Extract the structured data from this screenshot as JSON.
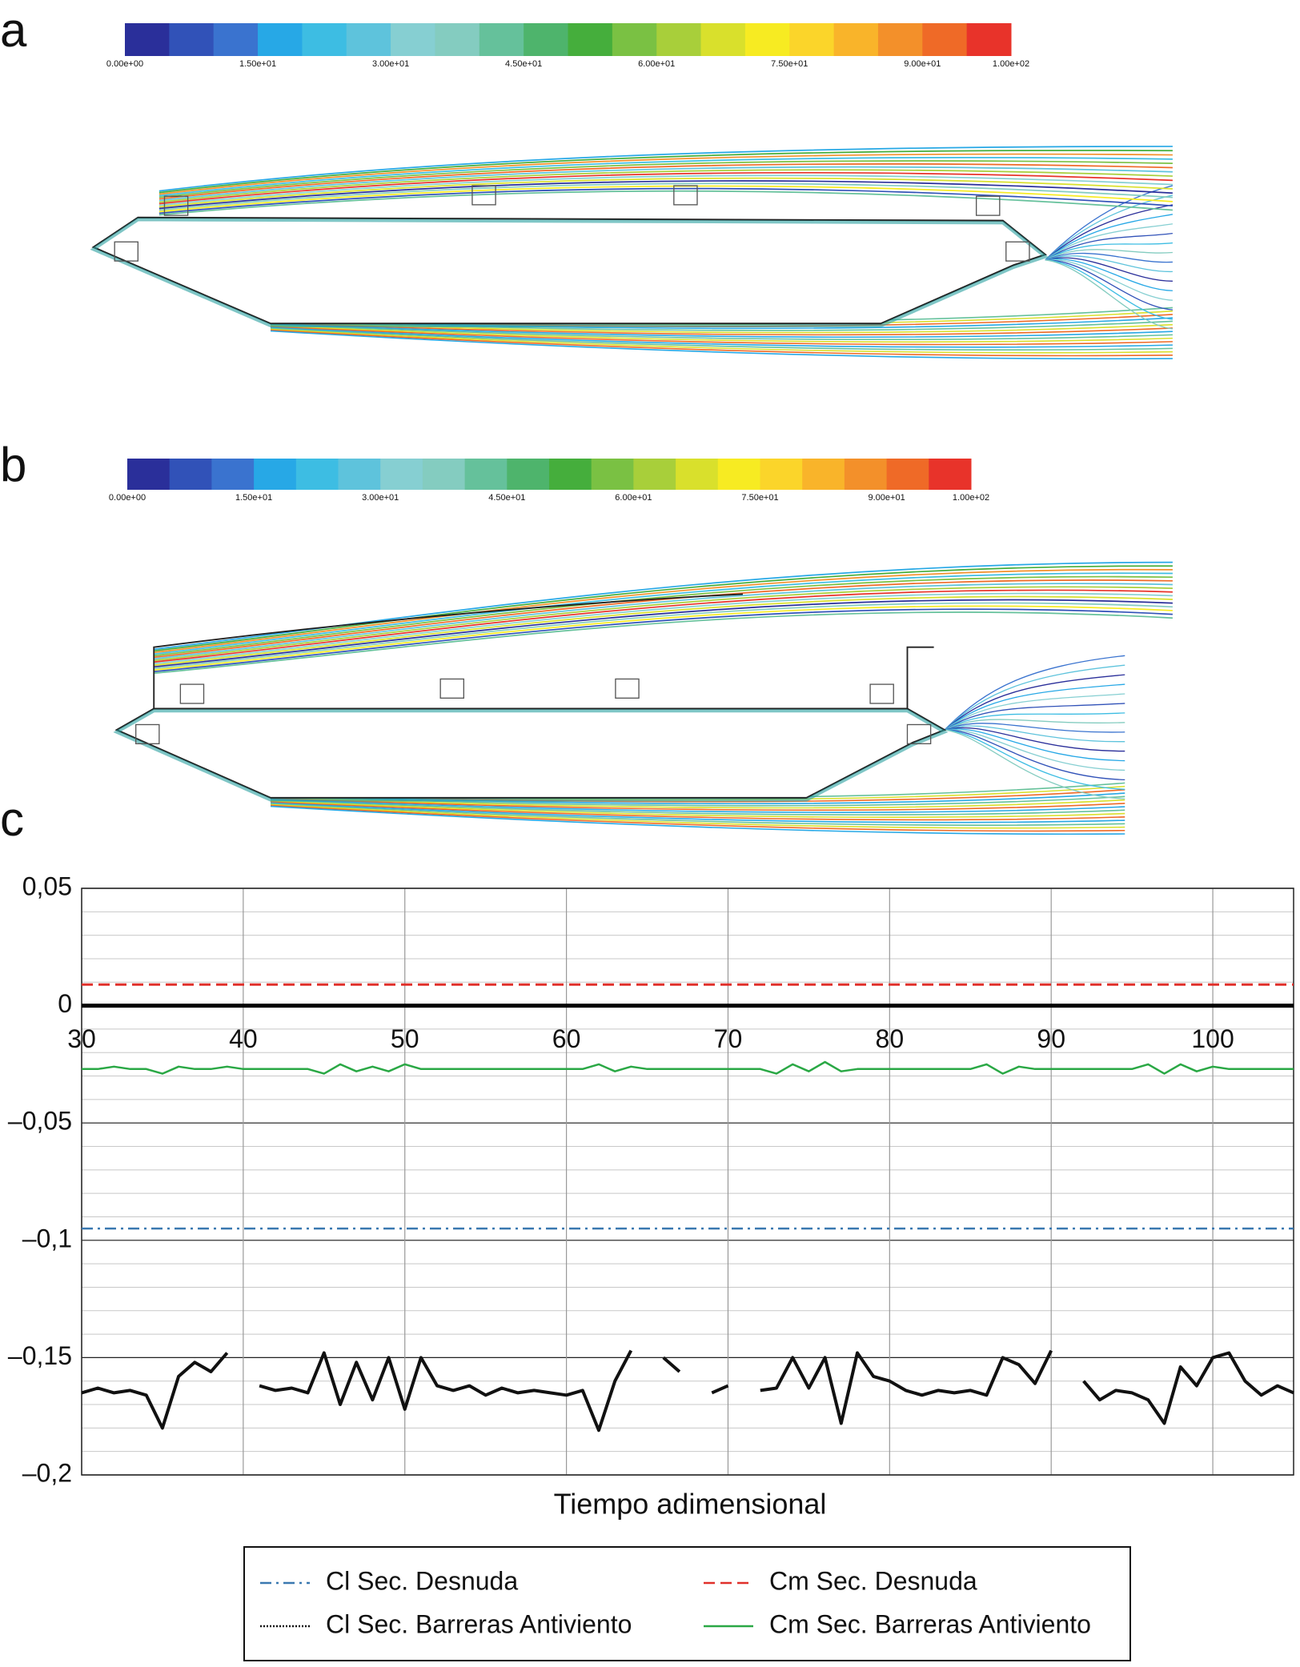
{
  "panels": [
    {
      "label": "a",
      "colorbar": {
        "lim": [
          0,
          100
        ],
        "colors": [
          "#2a2f9a",
          "#3152b8",
          "#3a73cf",
          "#27a8e6",
          "#3dbde3",
          "#5ec3dc",
          "#86cfd2",
          "#84ccc0",
          "#65c19b",
          "#4eb46c",
          "#45ae3c",
          "#7ac143",
          "#a8cf3a",
          "#d9e02c",
          "#f7eb22",
          "#fbd52a",
          "#f9b42a",
          "#f3902a",
          "#ef6a27",
          "#e8332a"
        ],
        "ticks": [
          {
            "value": 0,
            "label": "0.00e+00"
          },
          {
            "value": 15,
            "label": "1.50e+01"
          },
          {
            "value": 30,
            "label": "3.00e+01"
          },
          {
            "value": 45,
            "label": "4.50e+01"
          },
          {
            "value": 60,
            "label": "6.00e+01"
          },
          {
            "value": 75,
            "label": "7.50e+01"
          },
          {
            "value": 90,
            "label": "9.00e+01"
          },
          {
            "value": 100,
            "label": "1.00e+02"
          }
        ]
      }
    },
    {
      "label": "b",
      "colorbar": {
        "lim": [
          0,
          100
        ],
        "colors": [
          "#2a2f9a",
          "#3152b8",
          "#3a73cf",
          "#27a8e6",
          "#3dbde3",
          "#5ec3dc",
          "#86cfd2",
          "#84ccc0",
          "#65c19b",
          "#4eb46c",
          "#45ae3c",
          "#7ac143",
          "#a8cf3a",
          "#d9e02c",
          "#f7eb22",
          "#fbd52a",
          "#f9b42a",
          "#f3902a",
          "#ef6a27",
          "#e8332a"
        ],
        "ticks": [
          {
            "value": 0,
            "label": "0.00e+00"
          },
          {
            "value": 15,
            "label": "1.50e+01"
          },
          {
            "value": 30,
            "label": "3.00e+01"
          },
          {
            "value": 45,
            "label": "4.50e+01"
          },
          {
            "value": 60,
            "label": "6.00e+01"
          },
          {
            "value": 75,
            "label": "7.50e+01"
          },
          {
            "value": 90,
            "label": "9.00e+01"
          },
          {
            "value": 100,
            "label": "1.00e+02"
          }
        ]
      }
    }
  ],
  "chart_panel_label": "c",
  "chart_data": {
    "type": "line",
    "x_label": "Tiempo adimensional",
    "xlim": [
      30,
      105
    ],
    "xticks": [
      30,
      40,
      50,
      60,
      70,
      80,
      90,
      100
    ],
    "ylim": [
      -0.2,
      0.05
    ],
    "yticks": [
      {
        "value": 0.05,
        "label": "0,05"
      },
      0,
      {
        "value": -0.05,
        "label": "–0,05"
      },
      {
        "value": -0.1,
        "label": "–0,1"
      },
      {
        "value": -0.15,
        "label": "–0,15"
      },
      {
        "value": -0.2,
        "label": "–0,2"
      }
    ],
    "y_minor_step": 0.01,
    "grid": true,
    "zero_line": true,
    "x": [
      30,
      31,
      32,
      33,
      34,
      35,
      36,
      37,
      38,
      39,
      40,
      41,
      42,
      43,
      44,
      45,
      46,
      47,
      48,
      49,
      50,
      51,
      52,
      53,
      54,
      55,
      56,
      57,
      58,
      59,
      60,
      61,
      62,
      63,
      64,
      65,
      66,
      67,
      68,
      69,
      70,
      71,
      72,
      73,
      74,
      75,
      76,
      77,
      78,
      79,
      80,
      81,
      82,
      83,
      84,
      85,
      86,
      87,
      88,
      89,
      90,
      91,
      92,
      93,
      94,
      95,
      96,
      97,
      98,
      99,
      100,
      101,
      102,
      103,
      104,
      105
    ],
    "series": [
      {
        "name": "Cl Sec. Desnuda",
        "color": "#3a78b0",
        "style": "dash-dot",
        "width": 2.5,
        "values": [
          -0.095,
          -0.095,
          -0.095,
          -0.095,
          -0.095,
          -0.095,
          -0.095,
          -0.095,
          -0.095,
          -0.095,
          -0.095,
          -0.095,
          -0.095,
          -0.095,
          -0.095,
          -0.095,
          -0.095,
          -0.095,
          -0.095,
          -0.095,
          -0.095,
          -0.095,
          -0.095,
          -0.095,
          -0.095,
          -0.095,
          -0.095,
          -0.095,
          -0.095,
          -0.095,
          -0.095,
          -0.095,
          -0.095,
          -0.095,
          -0.095,
          -0.095,
          -0.095,
          -0.095,
          -0.095,
          -0.095,
          -0.095,
          -0.095,
          -0.095,
          -0.095,
          -0.095,
          -0.095,
          -0.095,
          -0.095,
          -0.095,
          -0.095,
          -0.095,
          -0.095,
          -0.095,
          -0.095,
          -0.095,
          -0.095,
          -0.095,
          -0.095,
          -0.095,
          -0.095,
          -0.095,
          -0.095,
          -0.095,
          -0.095,
          -0.095,
          -0.095,
          -0.095,
          -0.095,
          -0.095,
          -0.095,
          -0.095,
          -0.095,
          -0.095,
          -0.095,
          -0.095,
          -0.095
        ]
      },
      {
        "name": "Cm Sec. Desnuda",
        "color": "#e0302a",
        "style": "dashed",
        "width": 3,
        "values": [
          0.009,
          0.009,
          0.009,
          0.009,
          0.009,
          0.009,
          0.009,
          0.009,
          0.009,
          0.009,
          0.009,
          0.009,
          0.009,
          0.009,
          0.009,
          0.009,
          0.009,
          0.009,
          0.009,
          0.009,
          0.009,
          0.009,
          0.009,
          0.009,
          0.009,
          0.009,
          0.009,
          0.009,
          0.009,
          0.009,
          0.009,
          0.009,
          0.009,
          0.009,
          0.009,
          0.009,
          0.009,
          0.009,
          0.009,
          0.009,
          0.009,
          0.009,
          0.009,
          0.009,
          0.009,
          0.009,
          0.009,
          0.009,
          0.009,
          0.009,
          0.009,
          0.009,
          0.009,
          0.009,
          0.009,
          0.009,
          0.009,
          0.009,
          0.009,
          0.009,
          0.009,
          0.009,
          0.009,
          0.009,
          0.009,
          0.009,
          0.009,
          0.009,
          0.009,
          0.009,
          0.009,
          0.009,
          0.009,
          0.009,
          0.009,
          0.009
        ]
      },
      {
        "name": "Cl Sec. Barreras Antiviento",
        "color": "#111111",
        "style": "dotted",
        "width": 4,
        "values": [
          -0.165,
          -0.163,
          -0.165,
          -0.164,
          -0.166,
          -0.18,
          -0.158,
          -0.152,
          -0.156,
          -0.148,
          null,
          -0.162,
          -0.164,
          -0.163,
          -0.165,
          -0.148,
          -0.17,
          -0.152,
          -0.168,
          -0.15,
          -0.172,
          -0.15,
          -0.162,
          -0.164,
          -0.162,
          -0.166,
          -0.163,
          -0.165,
          -0.164,
          -0.165,
          -0.166,
          -0.164,
          -0.181,
          -0.16,
          -0.147,
          null,
          -0.15,
          -0.156,
          null,
          -0.165,
          -0.162,
          null,
          -0.164,
          -0.163,
          -0.15,
          -0.163,
          -0.15,
          -0.178,
          -0.148,
          -0.158,
          -0.16,
          -0.164,
          -0.166,
          -0.164,
          -0.165,
          -0.164,
          -0.166,
          -0.15,
          -0.153,
          -0.161,
          -0.147,
          null,
          -0.16,
          -0.168,
          -0.164,
          -0.165,
          -0.168,
          -0.178,
          -0.154,
          -0.162,
          -0.15,
          -0.148,
          -0.16,
          -0.166,
          -0.162,
          -0.165
        ]
      },
      {
        "name": "Cm Sec. Barreras Antiviento",
        "color": "#2aa845",
        "style": "solid",
        "width": 2.5,
        "values": [
          -0.027,
          -0.027,
          -0.026,
          -0.027,
          -0.027,
          -0.029,
          -0.026,
          -0.027,
          -0.027,
          -0.026,
          -0.027,
          -0.027,
          -0.027,
          -0.027,
          -0.027,
          -0.029,
          -0.025,
          -0.028,
          -0.026,
          -0.028,
          -0.025,
          -0.027,
          -0.027,
          -0.027,
          -0.027,
          -0.027,
          -0.027,
          -0.027,
          -0.027,
          -0.027,
          -0.027,
          -0.027,
          -0.025,
          -0.028,
          -0.026,
          -0.027,
          -0.027,
          -0.027,
          -0.027,
          -0.027,
          -0.027,
          -0.027,
          -0.027,
          -0.029,
          -0.025,
          -0.028,
          -0.024,
          -0.028,
          -0.027,
          -0.027,
          -0.027,
          -0.027,
          -0.027,
          -0.027,
          -0.027,
          -0.027,
          -0.025,
          -0.029,
          -0.026,
          -0.027,
          -0.027,
          -0.027,
          -0.027,
          -0.027,
          -0.027,
          -0.027,
          -0.025,
          -0.029,
          -0.025,
          -0.028,
          -0.026,
          -0.027,
          -0.027,
          -0.027,
          -0.027,
          -0.027
        ]
      }
    ]
  }
}
